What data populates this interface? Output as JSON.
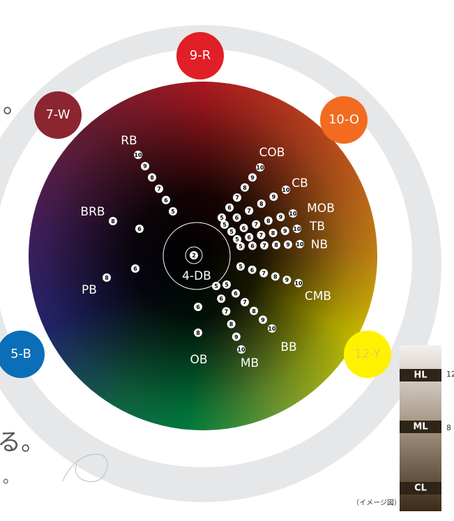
{
  "badges": [
    "9-R",
    "7-W",
    "10-O",
    "5-B",
    "12-Y"
  ],
  "center": {
    "label": "4-DB",
    "dot": 2
  },
  "rays": [
    {
      "label": "RB",
      "dots": [
        10,
        9,
        8,
        7,
        6,
        5
      ]
    },
    {
      "label": "COB",
      "dots": [
        5,
        6,
        7,
        8,
        9,
        10
      ]
    },
    {
      "label": "CB",
      "dots": [
        5,
        6,
        7,
        8,
        9,
        10
      ]
    },
    {
      "label": "MOB",
      "dots": [
        5,
        6,
        7,
        8,
        9,
        10
      ]
    },
    {
      "label": "TB",
      "dots": [
        5,
        6,
        7,
        8,
        9,
        10
      ]
    },
    {
      "label": "NB",
      "dots": [
        5,
        6,
        7,
        8,
        9,
        10
      ]
    },
    {
      "label": "CMB",
      "dots": [
        5,
        6,
        7,
        8,
        9,
        10
      ]
    },
    {
      "label": "BB",
      "dots": [
        5,
        6,
        7,
        8,
        9,
        10
      ]
    },
    {
      "label": "MB",
      "dots": [
        5,
        6,
        7,
        8,
        9,
        10
      ]
    },
    {
      "label": "OB",
      "dots": [
        6,
        8
      ]
    },
    {
      "label": "PB",
      "dots": [
        8,
        6
      ]
    },
    {
      "label": "BRB",
      "dots": [
        8,
        6
      ]
    }
  ],
  "levels": {
    "bands": [
      "HL",
      "ML",
      "CL"
    ],
    "scale": [
      "12",
      "8"
    ],
    "caption": "（イメージ図）"
  },
  "side_text": [
    "。",
    "る。",
    "。"
  ]
}
